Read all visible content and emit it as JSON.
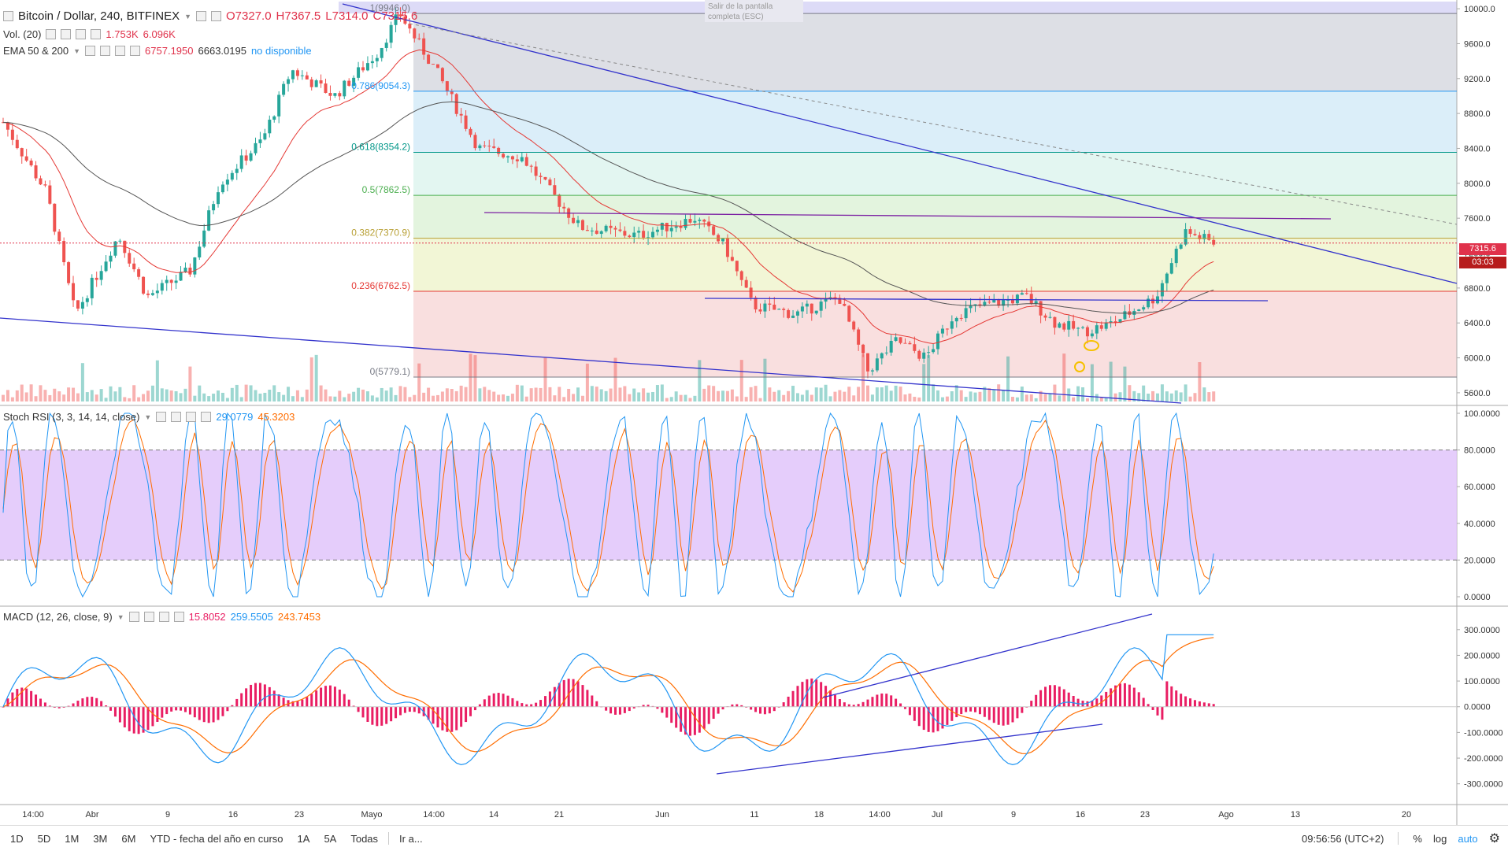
{
  "header": {
    "symbol": "Bitcoin / Dollar, 240, BITFINEX",
    "open": "O7327.0",
    "high": "H7367.5",
    "low": "L7314.0",
    "close": "C7315.6",
    "vol_label": "Vol. (20)",
    "vol_a": "1.753K",
    "vol_b": "6.096K",
    "ema_label": "EMA 50 & 200",
    "ema_a": "6757.1950",
    "ema_b": "6663.0195",
    "ema_c": "no disponible",
    "esc_tip": "Salir de la pantalla completa (ESC)"
  },
  "stoch": {
    "label": "Stoch RSI (3, 3, 14, 14, close)",
    "k": "29.0779",
    "d": "45.3203"
  },
  "macd": {
    "label": "MACD (12, 26, close, 9)",
    "hist": "15.8052",
    "macd": "259.5505",
    "signal": "243.7453"
  },
  "price_axis": [
    "10000.0",
    "9600.0",
    "9200.0",
    "8800.0",
    "8400.0",
    "8000.0",
    "7600.0",
    "7200.0",
    "6800.0",
    "6400.0",
    "6000.0",
    "5600.0"
  ],
  "stoch_axis": [
    "100.0000",
    "80.0000",
    "60.0000",
    "40.0000",
    "20.0000",
    "0.0000"
  ],
  "macd_axis": [
    "300.0000",
    "200.0000",
    "100.0000",
    "0.0000",
    "-100.0000",
    "-200.0000",
    "-300.0000"
  ],
  "time_axis": [
    "14:00",
    "Abr",
    "9",
    "16",
    "23",
    "Mayo",
    "14:00",
    "14",
    "21",
    "Jun",
    "11",
    "18",
    "14:00",
    "Jul",
    "9",
    "16",
    "23",
    "Ago",
    "13",
    "20"
  ],
  "last_price": "7315.6",
  "countdown": "03:03",
  "fib_levels": [
    {
      "label": "1(9946.0)",
      "value": 9946.0,
      "color": "#787b86"
    },
    {
      "label": "0.786(9054.3)",
      "value": 9054.3,
      "color": "#2196f3"
    },
    {
      "label": "0.618(8354.2)",
      "value": 8354.2,
      "color": "#009688"
    },
    {
      "label": "0.5(7862.5)",
      "value": 7862.5,
      "color": "#4caf50"
    },
    {
      "label": "0.382(7370.9)",
      "value": 7370.9,
      "color": "#b8a035"
    },
    {
      "label": "0.236(6762.5)",
      "value": 6762.5,
      "color": "#e53935"
    },
    {
      "label": "0(5779.1)",
      "value": 5779.1,
      "color": "#787b86"
    }
  ],
  "timeframes": [
    "1D",
    "5D",
    "1M",
    "3M",
    "6M",
    "YTD - fecha del año en curso",
    "1A",
    "5A",
    "Todas",
    "Ir a..."
  ],
  "bottom_right": {
    "clock": "09:56:56 (UTC+2)",
    "percent": "%",
    "log": "log",
    "auto": "auto"
  },
  "colors": {
    "up": "#26a69a",
    "down": "#ef5350",
    "ema50": "#e53935",
    "ema200": "#555555",
    "trend": "#3333cc",
    "stoch_k": "#2196f3",
    "stoch_d": "#ff6d00",
    "macd": "#2196f3",
    "signal": "#ff6d00",
    "hist": "#e91e63",
    "band": "#e1c4fa"
  },
  "chart_data": {
    "type": "line",
    "title": "Bitcoin / Dollar, 240, BITFINEX",
    "ylim": [
      5600,
      10000
    ],
    "price_path": [
      {
        "t": 0,
        "p": 8700
      },
      {
        "t": 0.03,
        "p": 7900
      },
      {
        "t": 0.05,
        "p": 6500
      },
      {
        "t": 0.08,
        "p": 7400
      },
      {
        "t": 0.1,
        "p": 6700
      },
      {
        "t": 0.13,
        "p": 7000
      },
      {
        "t": 0.15,
        "p": 8000
      },
      {
        "t": 0.18,
        "p": 8500
      },
      {
        "t": 0.2,
        "p": 9300
      },
      {
        "t": 0.23,
        "p": 9000
      },
      {
        "t": 0.26,
        "p": 9500
      },
      {
        "t": 0.275,
        "p": 9946
      },
      {
        "t": 0.3,
        "p": 9300
      },
      {
        "t": 0.33,
        "p": 8400
      },
      {
        "t": 0.36,
        "p": 8300
      },
      {
        "t": 0.38,
        "p": 7900
      },
      {
        "t": 0.4,
        "p": 7500
      },
      {
        "t": 0.44,
        "p": 7400
      },
      {
        "t": 0.48,
        "p": 7600
      },
      {
        "t": 0.5,
        "p": 7300
      },
      {
        "t": 0.52,
        "p": 6600
      },
      {
        "t": 0.55,
        "p": 6500
      },
      {
        "t": 0.58,
        "p": 6700
      },
      {
        "t": 0.6,
        "p": 5850
      },
      {
        "t": 0.62,
        "p": 6200
      },
      {
        "t": 0.64,
        "p": 6000
      },
      {
        "t": 0.66,
        "p": 6500
      },
      {
        "t": 0.68,
        "p": 6600
      },
      {
        "t": 0.71,
        "p": 6700
      },
      {
        "t": 0.73,
        "p": 6400
      },
      {
        "t": 0.75,
        "p": 6300
      },
      {
        "t": 0.77,
        "p": 6400
      },
      {
        "t": 0.8,
        "p": 6700
      },
      {
        "t": 0.82,
        "p": 7450
      },
      {
        "t": 0.84,
        "p": 7315.6
      }
    ]
  }
}
